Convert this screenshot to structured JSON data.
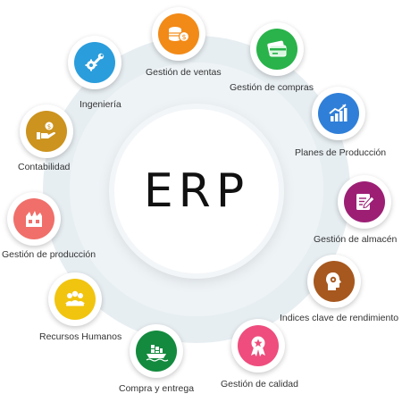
{
  "center": {
    "title": "ERP"
  },
  "modules": [
    {
      "key": "ventas",
      "label": "Gestión de ventas",
      "color": "#f28a17",
      "icon": "coins-icon"
    },
    {
      "key": "compras",
      "label": "Gestión de compras",
      "color": "#29b34a",
      "icon": "credit-card-icon"
    },
    {
      "key": "planes",
      "label": "Planes de Producción",
      "color": "#2f7fd8",
      "icon": "growth-chart-icon"
    },
    {
      "key": "almacen",
      "label": "Gestión de almacén",
      "color": "#9c1f74",
      "icon": "edit-document-icon"
    },
    {
      "key": "indices",
      "label": "Indices clave de rendimiento",
      "color": "#a7581e",
      "icon": "head-gear-icon"
    },
    {
      "key": "calidad",
      "label": "Gestión de calidad",
      "color": "#ee4d7d",
      "icon": "quality-ribbon-icon"
    },
    {
      "key": "compra-entrega",
      "label": "Compra y entrega",
      "color": "#138a3e",
      "icon": "cargo-ship-icon"
    },
    {
      "key": "recursos",
      "label": "Recursos Humanos",
      "color": "#f1c40f",
      "icon": "people-group-icon"
    },
    {
      "key": "produccion",
      "label": "Gestión de producción",
      "color": "#f06f6a",
      "icon": "factory-box-icon"
    },
    {
      "key": "contabilidad",
      "label": "Contabilidad",
      "color": "#cc931e",
      "icon": "money-hand-icon"
    },
    {
      "key": "ingenieria",
      "label": "Ingeniería",
      "color": "#2a9ddc",
      "icon": "wrench-gear-icon"
    }
  ]
}
